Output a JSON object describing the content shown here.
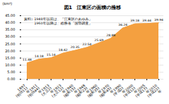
{
  "chart_data": {
    "type": "area",
    "title": "図1　江東区の面積の推移",
    "ylabel": "(km²)",
    "categories": [
      "1897\n(明治11)\n年",
      "1911\n(明治44)\n年",
      "1913\n(大正2)\n年",
      "1923\n(大正12)\n年",
      "1940\n(昭和15)\n年",
      "1948\n(昭和23)\n年",
      "1960\n(昭和35)\n年",
      "1970\n(昭和45)\n年",
      "1990\n(平成2)\n年",
      "2000\n(平成12)\n年",
      "2005\n(平成17)\n年",
      "2010\n(平成22)\n年"
    ],
    "values": [
      11.48,
      14.18,
      15.14,
      18.42,
      20.35,
      22.54,
      25.69,
      28.88,
      36.24,
      39.18,
      39.44,
      39.94
    ],
    "color": "#F4A040",
    "ylim": [
      0,
      45.0
    ],
    "yticks": [
      {
        "value": 0,
        "label": "0.00"
      },
      {
        "value": 5.0,
        "label": "5.00"
      },
      {
        "value": 10.0,
        "label": "10.00"
      },
      {
        "value": 15.0,
        "label": "15.00"
      },
      {
        "value": 20.0,
        "label": "20.00"
      },
      {
        "value": 25.0,
        "label": "25.00"
      },
      {
        "value": 30.0,
        "label": "30.00"
      },
      {
        "value": 35.0,
        "label": "35.00"
      },
      {
        "value": 40.0,
        "label": "40.00"
      },
      {
        "value": 45.0,
        "label": "45.00"
      }
    ],
    "grid": true,
    "data_labels": true,
    "annotations": [
      "資料）1948年以前は、「江東区のあゆみ」",
      "　　　1960年以降は、総務省「国勢調査」"
    ]
  }
}
